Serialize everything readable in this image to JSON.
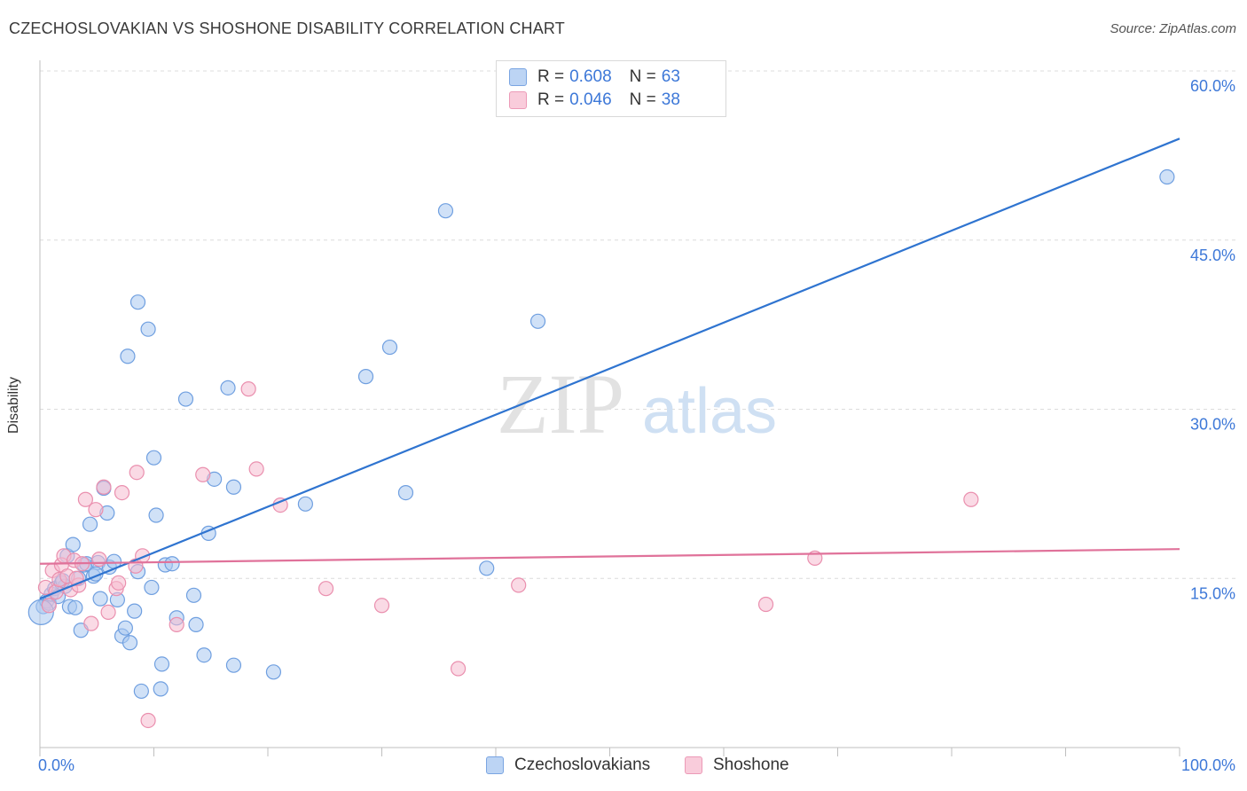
{
  "title": "CZECHOSLOVAKIAN VS SHOSHONE DISABILITY CORRELATION CHART",
  "source": "Source: ZipAtlas.com",
  "watermark": {
    "zip": "ZIP",
    "atlas": "atlas"
  },
  "legend": {
    "rows": [
      {
        "r_label": "R =",
        "r_value": "0.608",
        "n_label": "N =",
        "n_value": "63"
      },
      {
        "r_label": "R =",
        "r_value": "0.046",
        "n_label": "N =",
        "n_value": "38"
      }
    ]
  },
  "bottom_legend": {
    "series1": "Czechoslovakians",
    "series2": "Shoshone"
  },
  "colors": {
    "blue_fill": "#a9c8f0",
    "blue_stroke": "#6f9fe0",
    "blue_line": "#2f74d0",
    "pink_fill": "#f5bccf",
    "pink_stroke": "#ea8fae",
    "pink_line": "#e0729a",
    "tick_text": "#3d78d8",
    "grid": "#dcdcdc"
  },
  "chart_data": {
    "type": "scatter",
    "title": "CZECHOSLOVAKIAN VS SHOSHONE DISABILITY CORRELATION CHART",
    "xlabel": "",
    "ylabel": "Disability",
    "xlim": [
      0,
      100
    ],
    "ylim": [
      0,
      60
    ],
    "x_tick_labels": [
      "0.0%",
      "100.0%"
    ],
    "y_ticks": [
      15,
      30,
      45,
      60
    ],
    "y_tick_labels": [
      "15.0%",
      "30.0%",
      "45.0%",
      "60.0%"
    ],
    "grid": true,
    "series": [
      {
        "name": "Czechoslovakians",
        "r": 0.608,
        "n": 63,
        "trend": {
          "x0": 0,
          "y0": 13.2,
          "x1": 100,
          "y1": 54.0
        },
        "points": [
          [
            0.3,
            12.5
          ],
          [
            0.6,
            13.0
          ],
          [
            0.8,
            12.8
          ],
          [
            1.0,
            13.6
          ],
          [
            1.3,
            14.1
          ],
          [
            1.6,
            13.4
          ],
          [
            1.9,
            14.6
          ],
          [
            2.2,
            14.3
          ],
          [
            2.4,
            17.0
          ],
          [
            2.6,
            12.5
          ],
          [
            2.9,
            18.0
          ],
          [
            3.1,
            12.4
          ],
          [
            3.4,
            15.0
          ],
          [
            3.6,
            10.4
          ],
          [
            3.9,
            16.2
          ],
          [
            4.1,
            16.3
          ],
          [
            4.4,
            19.8
          ],
          [
            4.7,
            15.2
          ],
          [
            5.1,
            16.4
          ],
          [
            5.3,
            13.2
          ],
          [
            5.6,
            23.0
          ],
          [
            5.9,
            20.8
          ],
          [
            6.1,
            16.0
          ],
          [
            6.5,
            16.5
          ],
          [
            6.8,
            13.1
          ],
          [
            7.2,
            9.9
          ],
          [
            7.5,
            10.6
          ],
          [
            7.7,
            34.7
          ],
          [
            7.9,
            9.3
          ],
          [
            8.3,
            12.1
          ],
          [
            8.6,
            15.6
          ],
          [
            8.9,
            5.0
          ],
          [
            8.6,
            39.5
          ],
          [
            9.5,
            37.1
          ],
          [
            9.8,
            14.2
          ],
          [
            10.0,
            25.7
          ],
          [
            10.2,
            20.6
          ],
          [
            10.6,
            5.2
          ],
          [
            10.7,
            7.4
          ],
          [
            11.0,
            16.2
          ],
          [
            11.6,
            16.3
          ],
          [
            12.0,
            11.5
          ],
          [
            12.8,
            30.9
          ],
          [
            13.5,
            13.5
          ],
          [
            13.7,
            10.9
          ],
          [
            14.4,
            8.2
          ],
          [
            14.8,
            19.0
          ],
          [
            15.3,
            23.8
          ],
          [
            16.5,
            31.9
          ],
          [
            17.0,
            23.1
          ],
          [
            17.0,
            7.3
          ],
          [
            20.5,
            6.7
          ],
          [
            23.3,
            21.6
          ],
          [
            28.6,
            32.9
          ],
          [
            30.7,
            35.5
          ],
          [
            32.1,
            22.6
          ],
          [
            35.6,
            47.6
          ],
          [
            39.2,
            15.9
          ],
          [
            43.7,
            37.8
          ],
          [
            98.9,
            50.6
          ],
          [
            0.1,
            12.0
          ],
          [
            2.0,
            14.8
          ],
          [
            4.9,
            15.4
          ]
        ]
      },
      {
        "name": "Shoshone",
        "r": 0.046,
        "n": 38,
        "trend": {
          "x0": 0,
          "y0": 16.3,
          "x1": 100,
          "y1": 17.6
        },
        "points": [
          [
            0.5,
            14.2
          ],
          [
            0.8,
            12.6
          ],
          [
            1.1,
            15.7
          ],
          [
            1.4,
            13.8
          ],
          [
            1.7,
            14.9
          ],
          [
            1.9,
            16.2
          ],
          [
            2.1,
            17.0
          ],
          [
            2.4,
            15.2
          ],
          [
            2.7,
            14.0
          ],
          [
            3.0,
            16.6
          ],
          [
            3.4,
            14.4
          ],
          [
            3.7,
            16.3
          ],
          [
            4.0,
            22.0
          ],
          [
            4.5,
            11.0
          ],
          [
            4.9,
            21.1
          ],
          [
            5.2,
            16.7
          ],
          [
            5.6,
            23.1
          ],
          [
            6.0,
            12.0
          ],
          [
            6.7,
            14.1
          ],
          [
            6.9,
            14.6
          ],
          [
            7.2,
            22.6
          ],
          [
            8.4,
            16.1
          ],
          [
            8.5,
            24.4
          ],
          [
            9.0,
            17.0
          ],
          [
            9.5,
            2.4
          ],
          [
            12.0,
            10.9
          ],
          [
            14.3,
            24.2
          ],
          [
            18.3,
            31.8
          ],
          [
            19.0,
            24.7
          ],
          [
            21.1,
            21.5
          ],
          [
            25.1,
            14.1
          ],
          [
            30.0,
            12.6
          ],
          [
            36.7,
            7.0
          ],
          [
            42.0,
            14.4
          ],
          [
            63.7,
            12.7
          ],
          [
            68.0,
            16.8
          ],
          [
            81.7,
            22.0
          ],
          [
            3.2,
            15.0
          ]
        ]
      }
    ]
  }
}
